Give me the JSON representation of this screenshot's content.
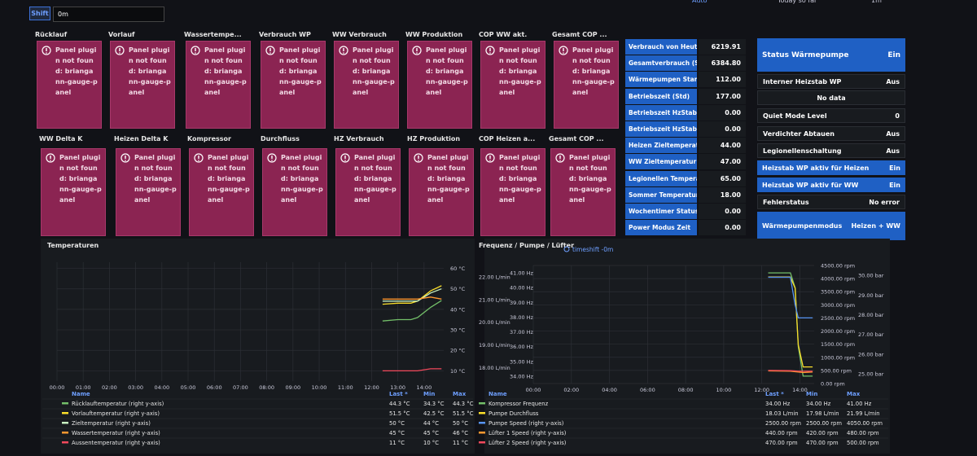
{
  "toolbar": {
    "shift_label": "Shift",
    "shift_value": "0m",
    "refresh_mode": "Auto",
    "time_range": "Today so far",
    "interval": "1m"
  },
  "gauge_panels": [
    {
      "title": "Rücklauf",
      "error": "Panel plugin not found: briangann-gauge-panel"
    },
    {
      "title": "Vorlauf",
      "error": "Panel plugin not found: briangann-gauge-panel"
    },
    {
      "title": "Wassertempe...",
      "error": "Panel plugin not found: briangann-gauge-panel"
    },
    {
      "title": "Verbrauch WP",
      "error": "Panel plugin not found: briangann-gauge-panel"
    },
    {
      "title": "WW Verbrauch",
      "error": "Panel plugin not found: briangann-gauge-panel"
    },
    {
      "title": "WW Produktion",
      "error": "Panel plugin not found: briangann-gauge-panel"
    },
    {
      "title": "COP WW akt.",
      "error": "Panel plugin not found: briangann-gauge-panel"
    },
    {
      "title": "Gesamt COP ...",
      "error": "Panel plugin not found: briangann-gauge-panel"
    },
    {
      "title": "WW Delta K",
      "error": "Panel plugin not found: briangann-gauge-panel"
    },
    {
      "title": "Heizen Delta K",
      "error": "Panel plugin not found: briangann-gauge-panel"
    },
    {
      "title": "Kompressor",
      "error": "Panel plugin not found: briangann-gauge-panel"
    },
    {
      "title": "Durchfluss",
      "error": "Panel plugin not found: briangann-gauge-panel"
    },
    {
      "title": "HZ Verbrauch",
      "error": "Panel plugin not found: briangann-gauge-panel"
    },
    {
      "title": "HZ Produktion",
      "error": "Panel plugin not found: briangann-gauge-panel"
    },
    {
      "title": "COP Heizen a...",
      "error": "Panel plugin not found: briangann-gauge-panel"
    },
    {
      "title": "Gesamt COP ...",
      "error": "Panel plugin not found: briangann-gauge-panel"
    }
  ],
  "stat_panels": [
    {
      "title": "Verbrauch von Heute...",
      "value": "6219.91"
    },
    {
      "title": "Gesamtverbrauch (S...",
      "value": "6384.80"
    },
    {
      "title": "Wärmepumpen Starts",
      "value": "112.00"
    },
    {
      "title": "Betriebszeit (Std)",
      "value": "177.00"
    },
    {
      "title": "Betriebszeit HzStab ...",
      "value": "0.00"
    },
    {
      "title": "Betriebszeit HzStab ...",
      "value": "0.00"
    },
    {
      "title": "Heizen Zieltemperatu...",
      "value": "44.00"
    },
    {
      "title": "WW Zieltemperatur (...",
      "value": "47.00"
    },
    {
      "title": "Legionellen Tempera...",
      "value": "65.00"
    },
    {
      "title": "Sommer Temperatur ...",
      "value": "18.00"
    },
    {
      "title": "Wochentimer Status",
      "value": "0.00"
    },
    {
      "title": "Power Modus Zeit",
      "value": "0.00"
    }
  ],
  "status_panels": [
    {
      "title": "Status Wärmepumpe",
      "value": "Ein",
      "style": "blue"
    },
    {
      "title": "Interner Heizstab WP",
      "value": "Aus",
      "style": "dark"
    },
    {
      "value": "No data",
      "style": "dark"
    },
    {
      "title": "Quiet Mode Level",
      "value": "0",
      "style": "dark"
    },
    {
      "title": "Verdichter Abtauen",
      "value": "Aus",
      "style": "dark"
    },
    {
      "title": "Legionellenschaltung",
      "value": "Aus",
      "style": "dark"
    },
    {
      "title": "Heizstab WP aktiv für Heizen",
      "value": "Ein",
      "style": "blue"
    },
    {
      "title": "Heizstab WP aktiv für WW",
      "value": "Ein",
      "style": "blue"
    },
    {
      "title": "Fehlerstatus",
      "value": "No error",
      "style": "dark"
    },
    {
      "title": "Wärmepumpenmodus",
      "value": "Heizen + WW",
      "style": "blue"
    }
  ],
  "chart_data": [
    {
      "type": "line",
      "title": "Temperaturen",
      "x": [
        "12:25",
        "13:00",
        "13:30",
        "13:45",
        "14:15",
        "14:40"
      ],
      "xlim": [
        "00:00",
        "14:45"
      ],
      "xticks": [
        "00:00",
        "01:00",
        "02:00",
        "03:00",
        "04:00",
        "05:00",
        "06:00",
        "07:00",
        "08:00",
        "09:00",
        "10:00",
        "11:00",
        "12:00",
        "13:00",
        "14:00"
      ],
      "grid": true,
      "legend_columns": [
        "Name",
        "Last *",
        "Min",
        "Max"
      ],
      "axes": [
        {
          "id": "temp",
          "side": "right",
          "lim": [
            5,
            63
          ],
          "ticks": [
            {
              "value": 10,
              "label": "10 °C"
            },
            {
              "value": 20,
              "label": "20 °C"
            },
            {
              "value": 30,
              "label": "30 °C"
            },
            {
              "value": 40,
              "label": "40 °C"
            },
            {
              "value": 50,
              "label": "50 °C"
            },
            {
              "value": 60,
              "label": "60 °C"
            }
          ]
        }
      ],
      "series": [
        {
          "name": "Rücklauftemperatur (right y-axis)",
          "color": "#73bf69",
          "axis": "temp",
          "values": [
            34.3,
            35,
            35,
            36,
            41,
            44.3
          ],
          "stats": [
            "44.3 °C",
            "34.3 °C",
            "44.3 °C"
          ]
        },
        {
          "name": "Vorlauftemperatur (right y-axis)",
          "color": "#fade2a",
          "axis": "temp",
          "values": [
            42.5,
            43,
            43,
            44,
            49,
            51.5
          ],
          "stats": [
            "51.5 °C",
            "42.5 °C",
            "51.5 °C"
          ]
        },
        {
          "name": "Zieltemperatur (right y-axis)",
          "color": "#c8f2c2",
          "axis": "temp",
          "values": [
            44,
            44,
            44,
            44,
            48,
            50
          ],
          "stats": [
            "50 °C",
            "44 °C",
            "50 °C"
          ]
        },
        {
          "name": "Wassertemperatur (right y-axis)",
          "color": "#ff9830",
          "axis": "temp",
          "values": [
            45,
            45,
            45,
            45,
            46,
            45
          ],
          "stats": [
            "45 °C",
            "45 °C",
            "46 °C"
          ]
        },
        {
          "name": "Aussentemperatur (right y-axis)",
          "color": "#f2495c",
          "axis": "temp",
          "values": [
            10,
            10,
            10,
            10,
            11,
            11
          ],
          "stats": [
            "11 °C",
            "10 °C",
            "11 °C"
          ]
        }
      ]
    },
    {
      "type": "line",
      "title": "Frequenz / Pumpe / Lüfter",
      "annotation": "timeshift -0m",
      "x": [
        "12:20",
        "13:30",
        "13:45",
        "13:55",
        "14:10",
        "14:40"
      ],
      "xlim": [
        "00:00",
        "14:45"
      ],
      "xticks": [
        "00:00",
        "02:00",
        "04:00",
        "06:00",
        "08:00",
        "10:00",
        "12:00",
        "14:00"
      ],
      "grid": true,
      "legend_columns": [
        "Name",
        "Last *",
        "Min",
        "Max"
      ],
      "axes": [
        {
          "id": "lmin",
          "side": "left",
          "lim": [
            17.3,
            22.5
          ],
          "ticks": [
            {
              "value": 18,
              "label": "18.00 L/min"
            },
            {
              "value": 19,
              "label": "19.00 L/min"
            },
            {
              "value": 20,
              "label": "20.00 L/min"
            },
            {
              "value": 21,
              "label": "21.00 L/min"
            },
            {
              "value": 22,
              "label": "22.00 L/min"
            }
          ]
        },
        {
          "id": "hz",
          "side": "left",
          "lim": [
            33.5,
            41.5
          ],
          "ticks": [
            {
              "value": 34,
              "label": "34.00 Hz"
            },
            {
              "value": 35,
              "label": "35.00 Hz"
            },
            {
              "value": 36,
              "label": "36.00 Hz"
            },
            {
              "value": 37,
              "label": "37.00 Hz"
            },
            {
              "value": 38,
              "label": "38.00 Hz"
            },
            {
              "value": 39,
              "label": "39.00 Hz"
            },
            {
              "value": 40,
              "label": "40.00 Hz"
            },
            {
              "value": 41,
              "label": "41.00 Hz"
            }
          ]
        },
        {
          "id": "rpm",
          "side": "right",
          "lim": [
            0,
            4500
          ],
          "ticks": [
            {
              "value": 0,
              "label": "0.00 rpm"
            },
            {
              "value": 500,
              "label": "500.00 rpm"
            },
            {
              "value": 1000,
              "label": "1000.00 rpm"
            },
            {
              "value": 1500,
              "label": "1500.00 rpm"
            },
            {
              "value": 2000,
              "label": "2000.00 rpm"
            },
            {
              "value": 2500,
              "label": "2500.00 rpm"
            },
            {
              "value": 3000,
              "label": "3000.00 rpm"
            },
            {
              "value": 3500,
              "label": "3500.00 rpm"
            },
            {
              "value": 4000,
              "label": "4000.00 rpm"
            },
            {
              "value": 4500,
              "label": "4500.00 rpm"
            }
          ]
        },
        {
          "id": "bar",
          "side": "right",
          "lim": [
            24.5,
            30.5
          ],
          "ticks": [
            {
              "value": 25,
              "label": "25.00 bar"
            },
            {
              "value": 26,
              "label": "26.00 bar"
            },
            {
              "value": 27,
              "label": "27.00 bar"
            },
            {
              "value": 28,
              "label": "28.00 bar"
            },
            {
              "value": 29,
              "label": "29.00 bar"
            },
            {
              "value": 30,
              "label": "30.00 bar"
            }
          ]
        }
      ],
      "series": [
        {
          "name": "Kompressor Frequenz",
          "color": "#73bf69",
          "axis": "hz",
          "values": [
            41,
            41,
            40,
            36,
            34,
            34
          ],
          "stats": [
            "34.00 Hz",
            "34.00 Hz",
            "41.00 Hz"
          ]
        },
        {
          "name": "Pumpe Durchfluss",
          "color": "#fade2a",
          "axis": "lmin",
          "values": [
            21.99,
            21.99,
            21.5,
            19,
            18.03,
            18.03
          ],
          "stats": [
            "18.03 L/min",
            "17.98 L/min",
            "21.99 L/min"
          ]
        },
        {
          "name": "Pumpe Speed (right y-axis)",
          "color": "#5794f2",
          "axis": "rpm",
          "values": [
            4050,
            4050,
            3000,
            2500,
            2500,
            2500
          ],
          "stats": [
            "2500.00 rpm",
            "2500.00 rpm",
            "4050.00 rpm"
          ]
        },
        {
          "name": "Lüfter 1 Speed (right y-axis)",
          "color": "#ff9830",
          "axis": "rpm",
          "values": [
            480,
            470,
            450,
            440,
            420,
            440
          ],
          "stats": [
            "440.00 rpm",
            "420.00 rpm",
            "480.00 rpm"
          ]
        },
        {
          "name": "Lüfter 2 Speed (right y-axis)",
          "color": "#f2495c",
          "axis": "rpm",
          "values": [
            500,
            490,
            480,
            470,
            470,
            470
          ],
          "stats": [
            "470.00 rpm",
            "470.00 rpm",
            "500.00 rpm"
          ]
        }
      ]
    }
  ]
}
